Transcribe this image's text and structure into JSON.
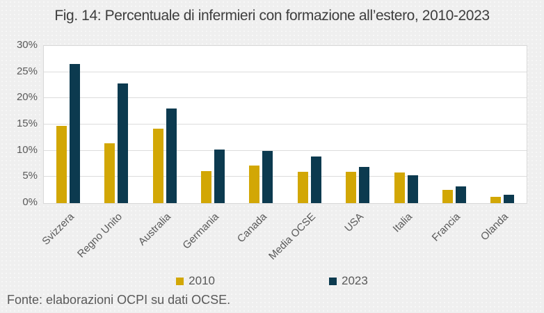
{
  "title": "Fig. 14: Percentuale di infermieri con formazione all’estero, 2010-2023",
  "source_note": "Fonte: elaborazioni OCPI su dati OCSE.",
  "colors": {
    "background": "#efefef",
    "plot_background": "#ffffff",
    "gridline": "#dcdcdc",
    "axis_text": "#595959",
    "title_text": "#3e3e3e",
    "series_2010": "#d2a705",
    "series_2023": "#0c3a4f"
  },
  "chart_data": {
    "type": "bar",
    "title": "Fig. 14: Percentuale di infermieri con formazione all’estero, 2010-2023",
    "xlabel": "",
    "ylabel": "",
    "ylim": [
      0,
      30
    ],
    "yticks": [
      0,
      5,
      10,
      15,
      20,
      25,
      30
    ],
    "ytick_suffix": "%",
    "grid": "horizontal",
    "legend_position": "bottom",
    "categories": [
      "Svizzera",
      "Regno Unito",
      "Australia",
      "Germania",
      "Canada",
      "Media OCSE",
      "USA",
      "Italia",
      "Francia",
      "Olanda"
    ],
    "series": [
      {
        "name": "2010",
        "color": "#d2a705",
        "values": [
          14.7,
          11.4,
          14.2,
          6.1,
          7.2,
          6.0,
          6.0,
          5.8,
          2.5,
          1.2
        ]
      },
      {
        "name": "2023",
        "color": "#0c3a4f",
        "values": [
          26.6,
          22.8,
          18.1,
          10.2,
          10.0,
          8.9,
          6.9,
          5.3,
          3.2,
          1.6
        ]
      }
    ]
  }
}
